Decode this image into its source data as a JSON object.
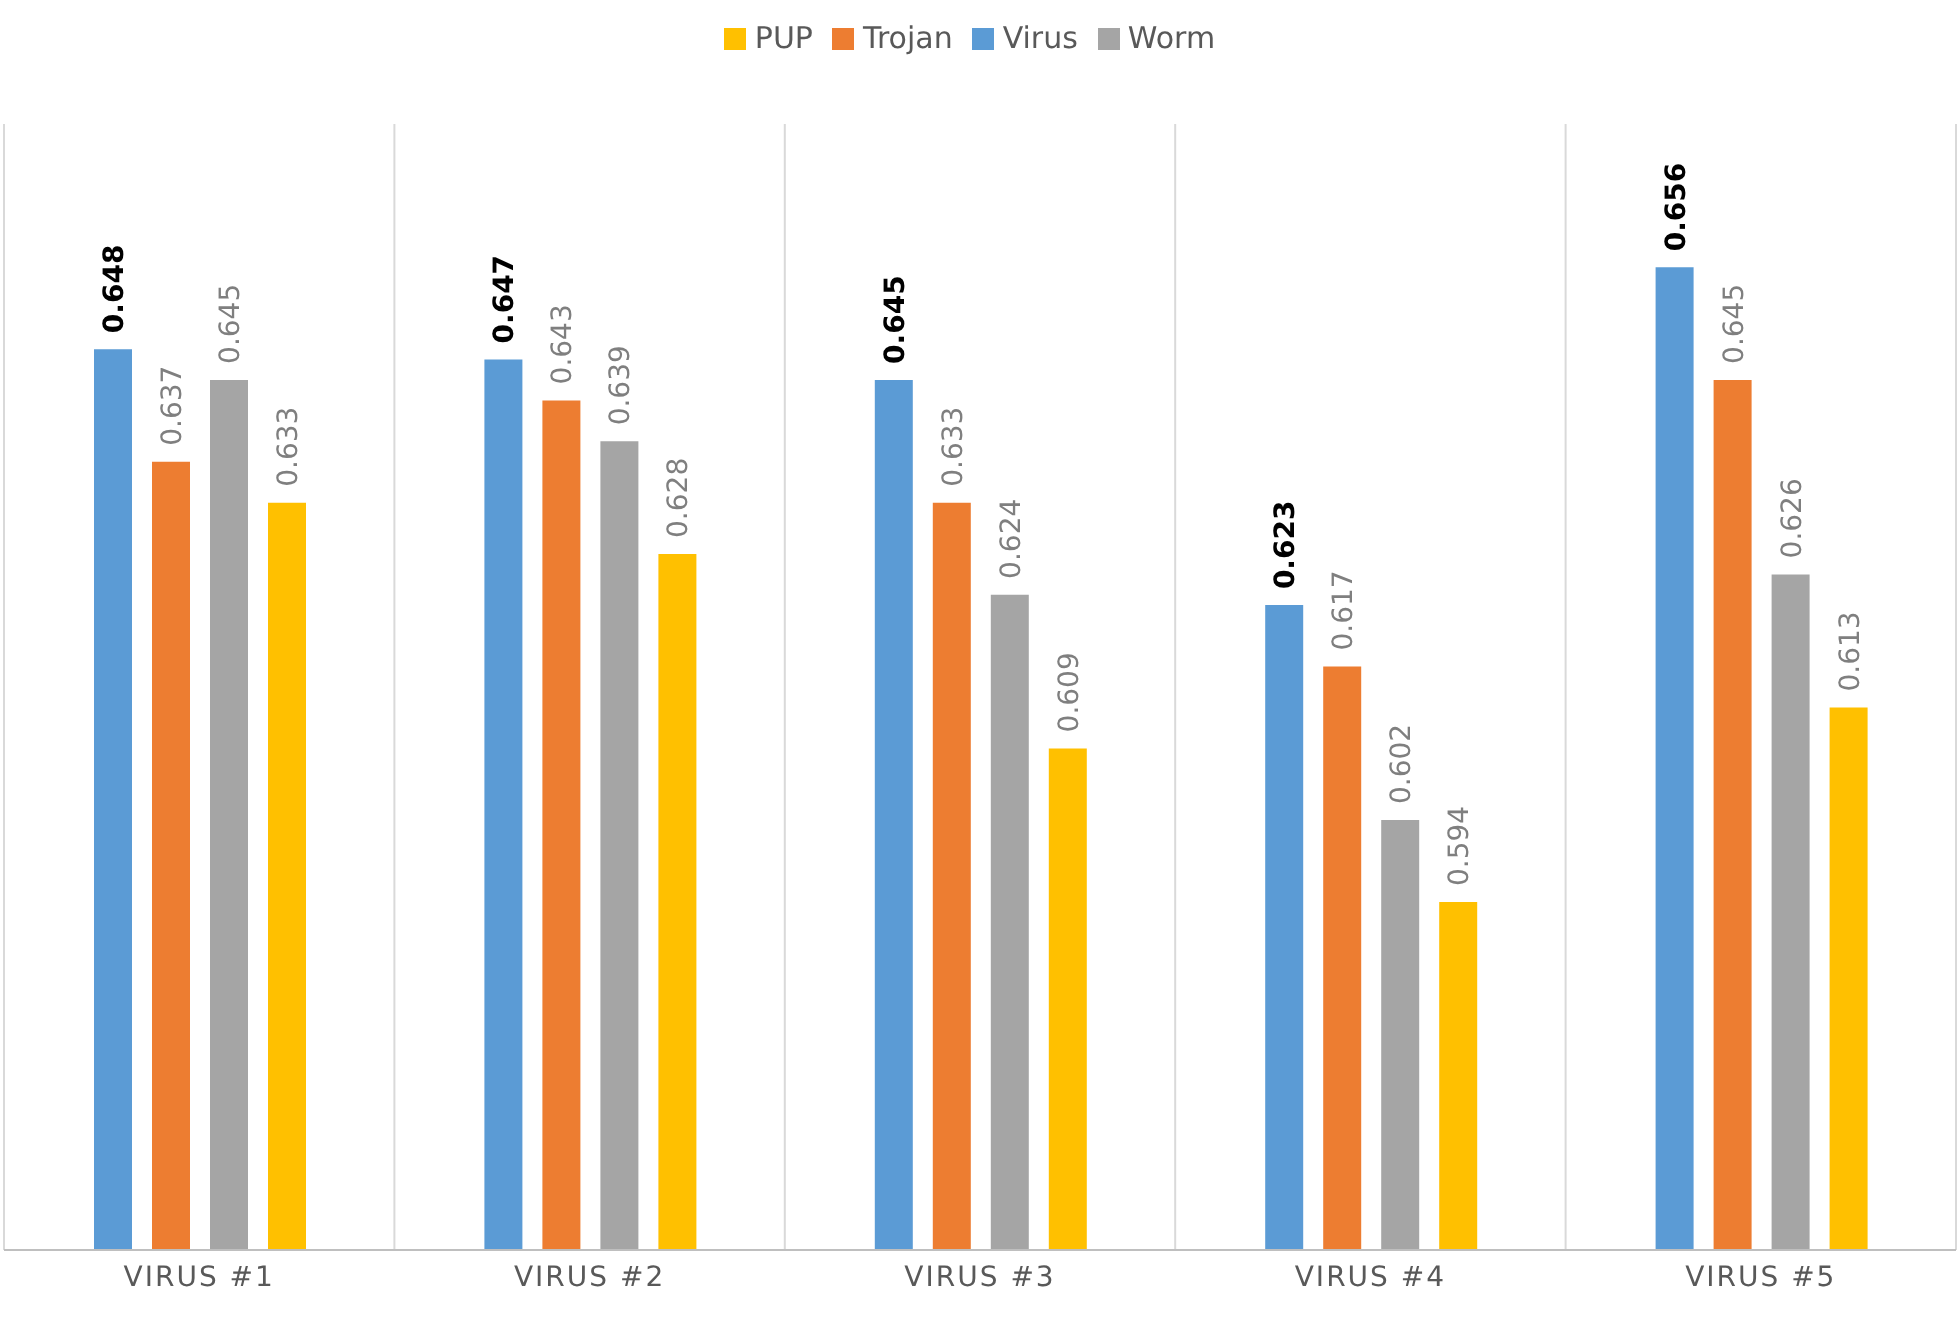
{
  "chart_data": {
    "type": "bar",
    "categories": [
      "VIRUS #1",
      "VIRUS #2",
      "VIRUS #3",
      "VIRUS #4",
      "VIRUS #5"
    ],
    "series": [
      {
        "name": "Virus",
        "color": "#5b9bd5",
        "values": [
          0.648,
          0.647,
          0.645,
          0.623,
          0.656
        ]
      },
      {
        "name": "Trojan",
        "color": "#ed7d31",
        "values": [
          0.637,
          0.643,
          0.633,
          0.617,
          0.645
        ]
      },
      {
        "name": "Worm",
        "color": "#a5a5a5",
        "values": [
          0.645,
          0.639,
          0.624,
          0.602,
          0.626
        ]
      },
      {
        "name": "PUP",
        "color": "#ffc000",
        "values": [
          0.633,
          0.628,
          0.609,
          0.594,
          0.613
        ]
      }
    ],
    "ylim": [
      0.56,
      0.67
    ],
    "data_labels": true,
    "grid": "x",
    "legend": "top",
    "tick_labels": "x"
  }
}
